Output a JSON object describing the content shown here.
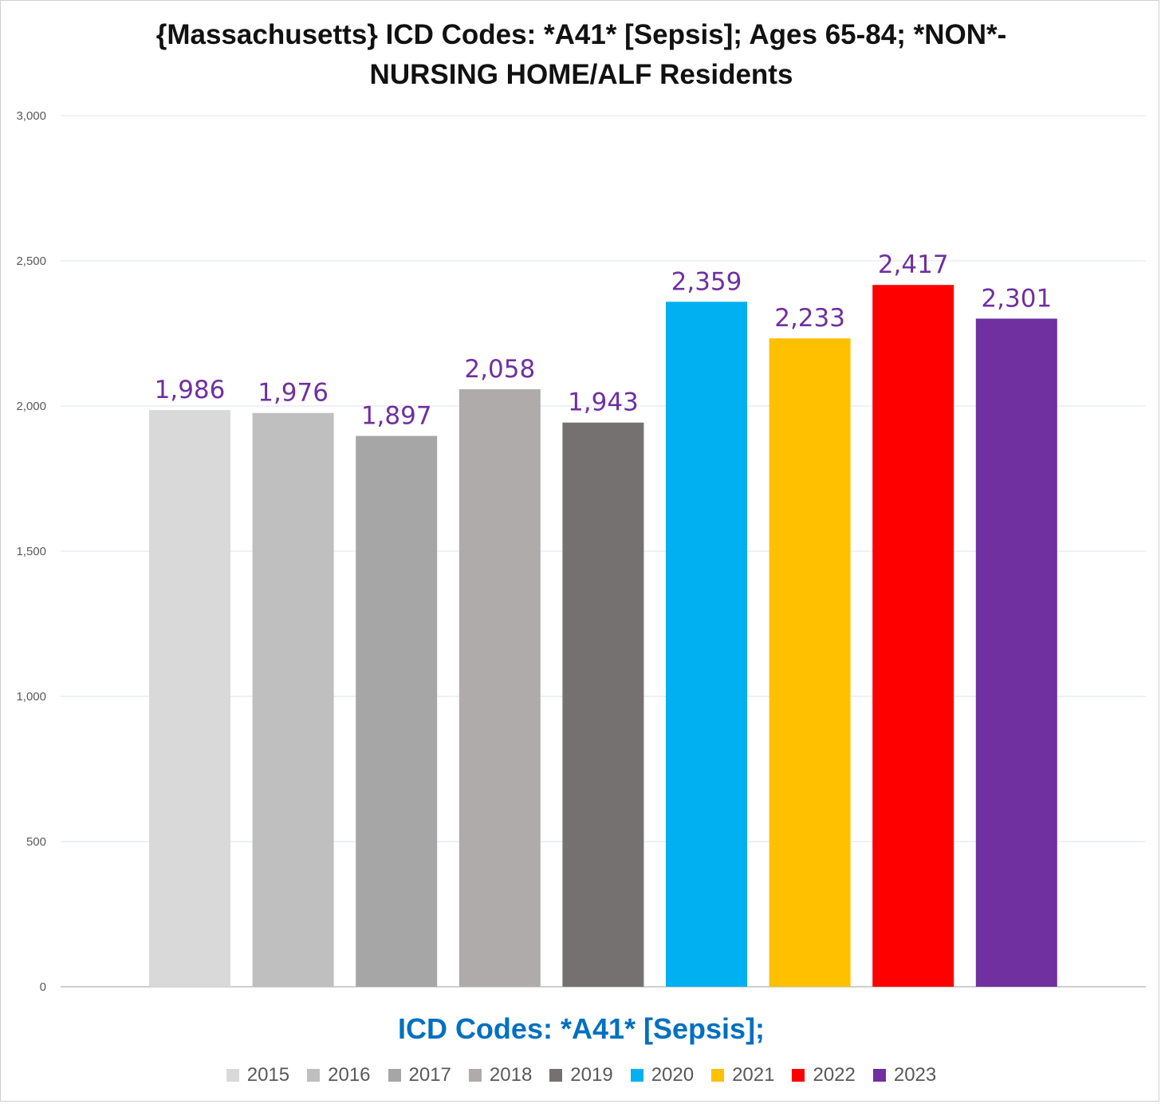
{
  "chart_data": {
    "type": "bar",
    "title": "{Massachusetts}  ICD Codes: *A41* [Sepsis]; Ages 65-84; *NON*-NURSING HOME/ALF Residents",
    "xlabel": "ICD Codes: *A41* [Sepsis];",
    "ylabel": "",
    "categories": [
      "2015",
      "2016",
      "2017",
      "2018",
      "2019",
      "2020",
      "2021",
      "2022",
      "2023"
    ],
    "values": [
      1986,
      1976,
      1897,
      2058,
      1943,
      2359,
      2233,
      2417,
      2301
    ],
    "data_labels": [
      "1,986",
      "1,976",
      "1,897",
      "2,058",
      "1,943",
      "2,359",
      "2,233",
      "2,417",
      "2,301"
    ],
    "colors": [
      "#d9d9d9",
      "#bfbfbf",
      "#a6a6a6",
      "#afabab",
      "#767171",
      "#00b0f0",
      "#ffc000",
      "#ff0000",
      "#7030a0"
    ],
    "ylim": [
      0,
      3000
    ],
    "yticks": [
      0,
      500,
      1000,
      1500,
      2000,
      2500,
      3000
    ],
    "ytick_labels": [
      "0",
      "500",
      "1,000",
      "1,500",
      "2,000",
      "2,500",
      "3,000"
    ],
    "grid": true,
    "legend": "bottom",
    "data_label_color": "#7030a0"
  }
}
